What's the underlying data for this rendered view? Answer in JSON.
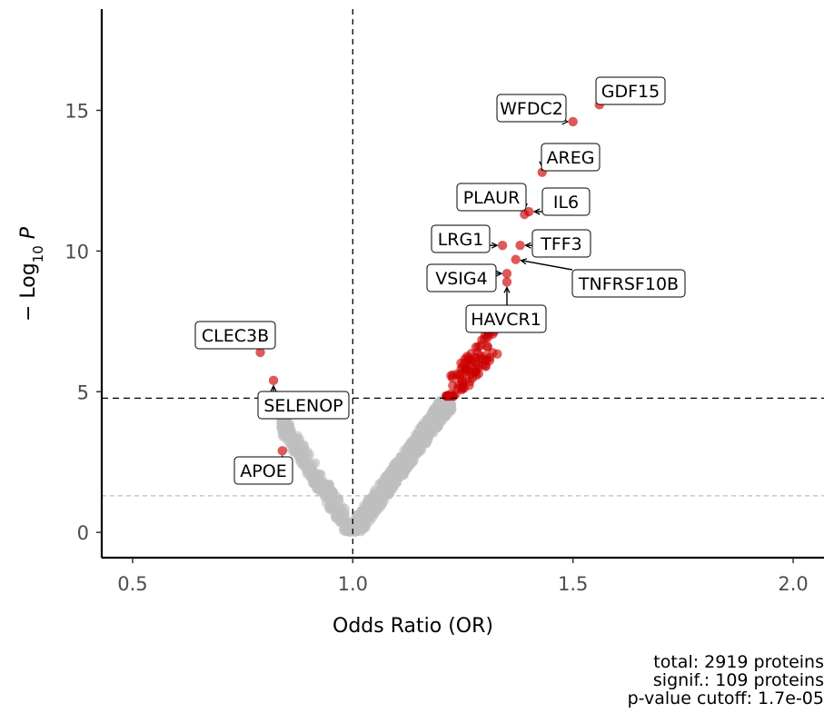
{
  "chart_data": {
    "type": "scatter",
    "title": "",
    "xlabel": "Odds Ratio (OR)",
    "ylabel": "− Log",
    "ylabel_sub": "10",
    "ylabel_tail": "P",
    "xlim": [
      0.43,
      2.07
    ],
    "ylim": [
      -0.9,
      18.6
    ],
    "x_ticks": [
      0.5,
      1.0,
      1.5,
      2.0
    ],
    "x_tick_labels": [
      "0.5",
      "1.0",
      "1.5",
      "2.0"
    ],
    "y_ticks": [
      0,
      5,
      10,
      15
    ],
    "y_tick_labels": [
      "0",
      "5",
      "10",
      "15"
    ],
    "vline_x": 1.0,
    "hline_significance": 4.77,
    "hline_nominal": 1.3,
    "colors": {
      "significant": "#cc0000",
      "nonsignificant": "#bebebe"
    },
    "labeled_points": [
      {
        "label": "GDF15",
        "x": 1.56,
        "y": 15.2
      },
      {
        "label": "WFDC2",
        "x": 1.5,
        "y": 14.6
      },
      {
        "label": "AREG",
        "x": 1.43,
        "y": 12.8
      },
      {
        "label": "IL6",
        "x": 1.4,
        "y": 11.4
      },
      {
        "label": "PLAUR",
        "x": 1.39,
        "y": 11.3
      },
      {
        "label": "LRG1",
        "x": 1.34,
        "y": 10.2
      },
      {
        "label": "TFF3",
        "x": 1.38,
        "y": 10.2
      },
      {
        "label": "TNFRSF10B",
        "x": 1.37,
        "y": 9.7
      },
      {
        "label": "VSIG4",
        "x": 1.35,
        "y": 9.2
      },
      {
        "label": "HAVCR1",
        "x": 1.35,
        "y": 8.9
      },
      {
        "label": "CLEC3B",
        "x": 0.79,
        "y": 6.4
      },
      {
        "label": "SELENOP",
        "x": 0.82,
        "y": 5.4
      },
      {
        "label": "APOE",
        "x": 0.84,
        "y": 2.9
      }
    ]
  },
  "caption": {
    "line1": "total: 2919 proteins",
    "line2": "signif.: 109 proteins",
    "line3": "p-value cutoff: 1.7e-05"
  }
}
